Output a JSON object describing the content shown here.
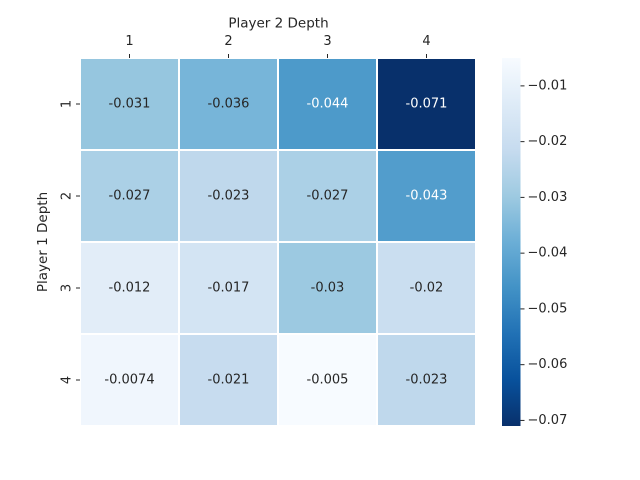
{
  "chart_data": {
    "type": "heatmap",
    "title": "",
    "xlabel": "Player 2 Depth",
    "ylabel": "Player 1 Depth",
    "x_categories": [
      "1",
      "2",
      "3",
      "4"
    ],
    "y_categories": [
      "1",
      "2",
      "3",
      "4"
    ],
    "values": [
      [
        -0.031,
        -0.036,
        -0.044,
        -0.071
      ],
      [
        -0.027,
        -0.023,
        -0.027,
        -0.043
      ],
      [
        -0.012,
        -0.017,
        -0.03,
        -0.02
      ],
      [
        -0.0074,
        -0.021,
        -0.005,
        -0.023
      ]
    ],
    "cell_labels": [
      [
        "-0.031",
        "-0.036",
        "-0.044",
        "-0.071"
      ],
      [
        "-0.027",
        "-0.023",
        "-0.027",
        "-0.043"
      ],
      [
        "-0.012",
        "-0.017",
        "-0.03",
        "-0.02"
      ],
      [
        "-0.0074",
        "-0.021",
        "-0.005",
        "-0.023"
      ]
    ],
    "colormap": "Blues_r",
    "vmin": -0.071,
    "vmax": -0.005,
    "x_axis_position": "top",
    "colorbar": {
      "ticks": [
        -0.01,
        -0.02,
        -0.03,
        -0.04,
        -0.05,
        -0.06,
        -0.07
      ],
      "tick_labels": [
        "−0.01",
        "−0.02",
        "−0.03",
        "−0.04",
        "−0.05",
        "−0.06",
        "−0.07"
      ]
    },
    "grid_line_color": "#ffffff",
    "colors": {
      "text_dark": "#262626",
      "text_light": "#ffffff",
      "ramp": [
        "#08306b",
        "#08519c",
        "#2171b5",
        "#4292c6",
        "#6baed6",
        "#9ecae1",
        "#c6dbef",
        "#deebf7",
        "#f7fbff"
      ]
    }
  }
}
